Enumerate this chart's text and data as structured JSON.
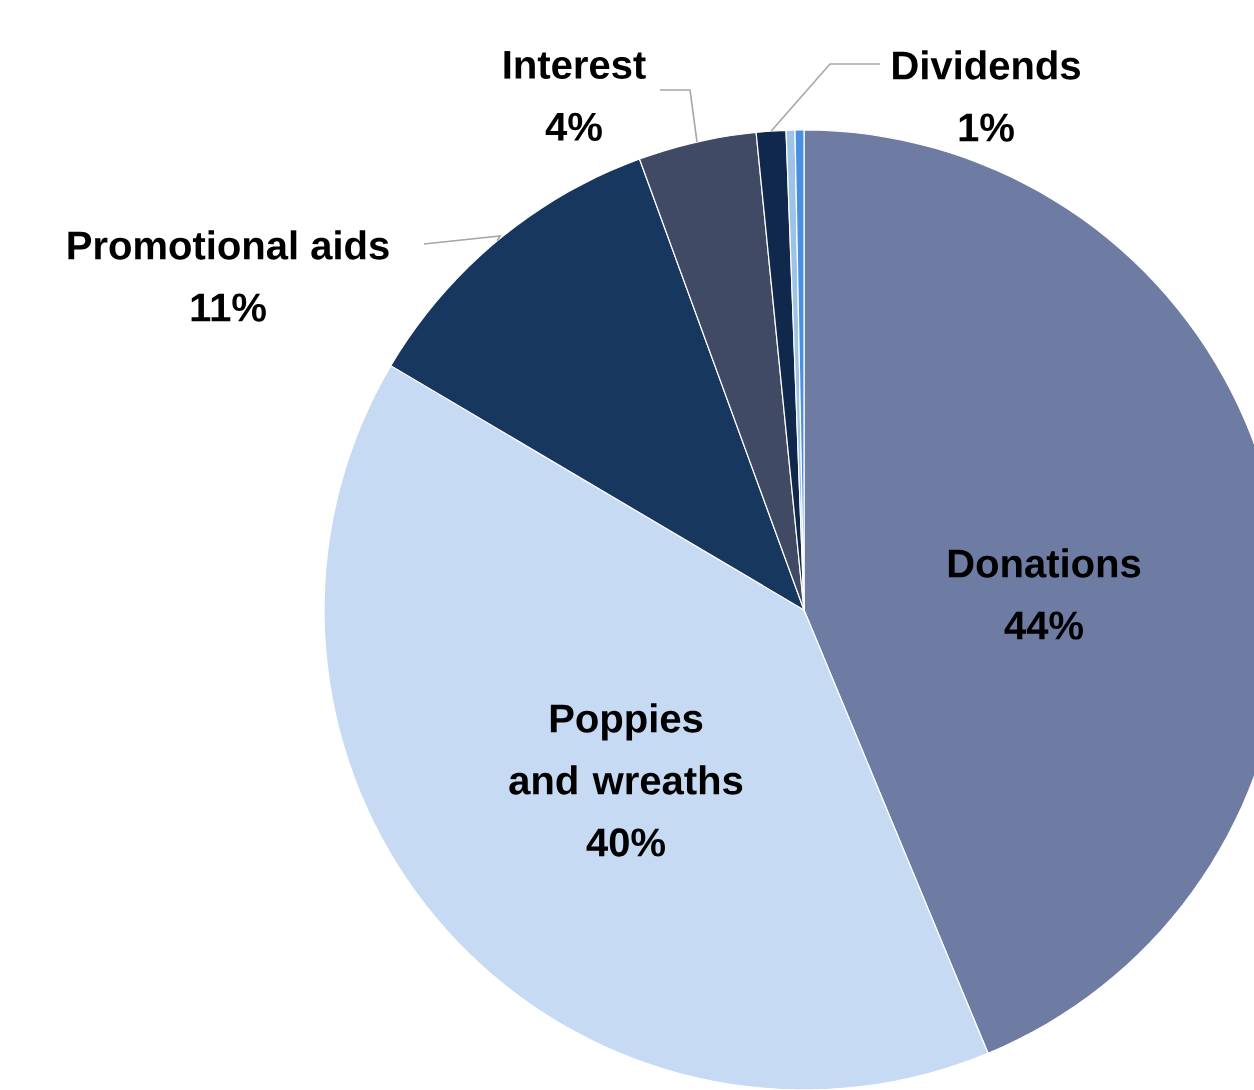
{
  "chart_data": {
    "type": "pie",
    "categories": [
      "Donations",
      "Poppies and wreaths",
      "Promotional aids",
      "Interest",
      "Dividends",
      null,
      null
    ],
    "values": [
      44,
      40,
      11,
      4,
      1,
      0.3,
      0.3
    ],
    "value_labels": [
      "44%",
      "40%",
      "11%",
      "4%",
      "1%",
      null,
      null
    ],
    "colors": [
      "#6e7ba3",
      "#c6dbf3",
      "#17375e",
      "#404a65",
      "#10284b",
      "#9dc3e6",
      "#4a90e2"
    ]
  }
}
